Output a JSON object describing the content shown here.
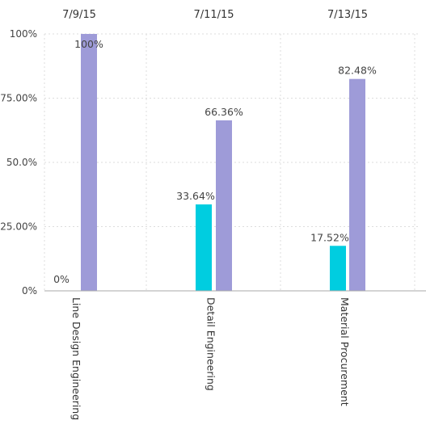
{
  "chart_data": {
    "type": "bar",
    "categories": [
      "Line Design Engineering",
      "Detail Engineering",
      "Material Procurement"
    ],
    "top_labels": [
      "7/9/15",
      "7/11/15",
      "7/13/15"
    ],
    "series": [
      {
        "values": [
          0,
          33.64,
          17.52
        ],
        "color": "#00cde0",
        "labels": [
          "0%",
          "33.64%",
          "17.52%"
        ]
      },
      {
        "values": [
          100,
          66.36,
          82.48
        ],
        "color": "#9e9bd8",
        "labels": [
          "100%",
          "66.36%",
          "82.48%"
        ]
      }
    ],
    "y_ticks": [
      {
        "value": 0,
        "label": "0%"
      },
      {
        "value": 25,
        "label": "25.00%"
      },
      {
        "value": 50,
        "label": "50.0%"
      },
      {
        "value": 75,
        "label": "75.00%"
      },
      {
        "value": 100,
        "label": "100%"
      }
    ],
    "ylim": [
      0,
      100
    ],
    "grid": true,
    "legend": "none",
    "xlabel": "",
    "ylabel": "",
    "title": ""
  }
}
